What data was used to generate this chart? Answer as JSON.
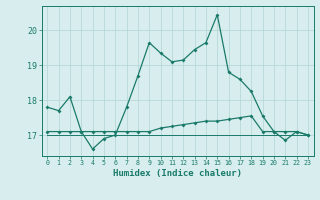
{
  "xlabel": "Humidex (Indice chaleur)",
  "x": [
    0,
    1,
    2,
    3,
    4,
    5,
    6,
    7,
    8,
    9,
    10,
    11,
    12,
    13,
    14,
    15,
    16,
    17,
    18,
    19,
    20,
    21,
    22,
    23
  ],
  "line1": [
    17.8,
    17.7,
    18.1,
    17.1,
    16.6,
    16.9,
    17.0,
    17.8,
    18.7,
    19.65,
    19.35,
    19.1,
    19.15,
    19.45,
    19.65,
    20.45,
    18.8,
    18.6,
    18.25,
    17.55,
    17.1,
    16.85,
    17.1,
    17.0
  ],
  "line2": [
    17.1,
    17.1,
    17.1,
    17.1,
    17.1,
    17.1,
    17.1,
    17.1,
    17.1,
    17.1,
    17.2,
    17.25,
    17.3,
    17.35,
    17.4,
    17.4,
    17.45,
    17.5,
    17.55,
    17.1,
    17.1,
    17.1,
    17.1,
    17.0
  ],
  "line3": [
    17.0,
    17.0,
    17.0,
    17.0,
    17.0,
    17.0,
    17.0,
    17.0,
    17.0,
    17.0,
    17.0,
    17.0,
    17.0,
    17.0,
    17.0,
    17.0,
    17.0,
    17.0,
    17.0,
    17.0,
    17.0,
    17.0,
    17.0,
    17.0
  ],
  "line_color": "#1a7a6a",
  "bg_color": "#d8eeee",
  "grid_color": "#b8d8d8",
  "ylim": [
    16.4,
    20.7
  ],
  "yticks": [
    17,
    18,
    19,
    20
  ],
  "xticks": [
    0,
    1,
    2,
    3,
    4,
    5,
    6,
    7,
    8,
    9,
    10,
    11,
    12,
    13,
    14,
    15,
    16,
    17,
    18,
    19,
    20,
    21,
    22,
    23
  ]
}
